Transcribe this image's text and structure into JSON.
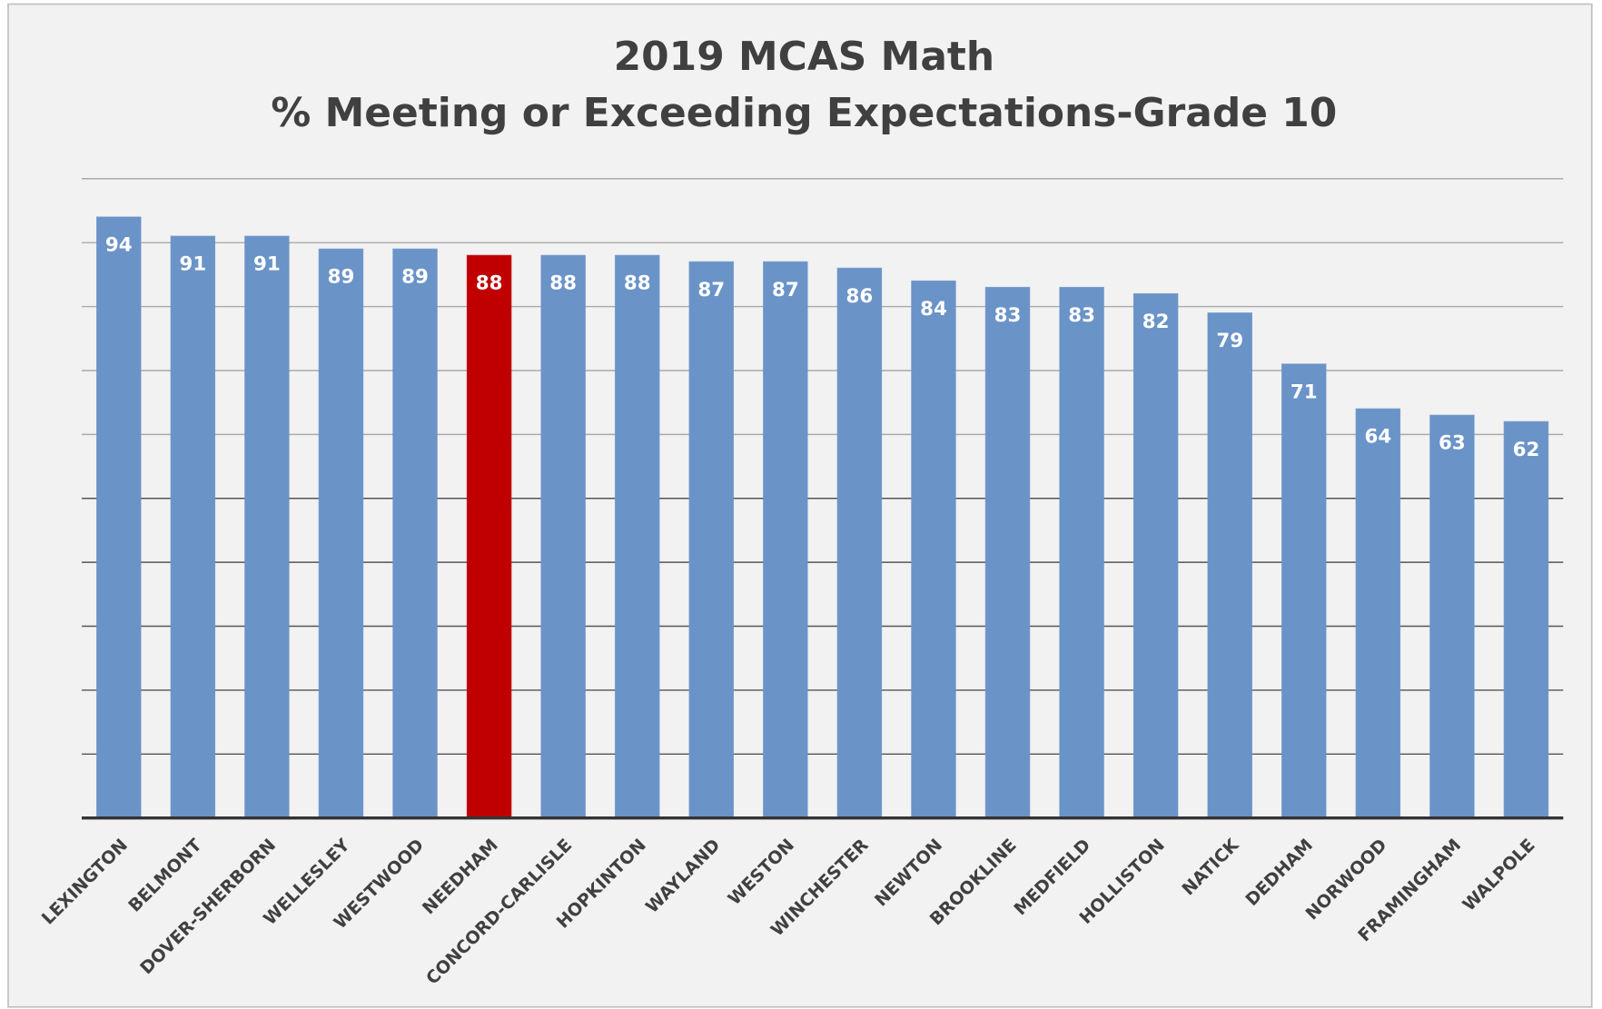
{
  "chart_data": {
    "type": "bar",
    "title": "2019 MCAS Math",
    "subtitle": "% Meeting or Exceeding Expectations-Grade 10",
    "categories": [
      "LEXINGTON",
      "BELMONT",
      "DOVER-SHERBORN",
      "WELLESLEY",
      "WESTWOOD",
      "NEEDHAM",
      "CONCORD-CARLISLE",
      "HOPKINTON",
      "WAYLAND",
      "WESTON",
      "WINCHESTER",
      "NEWTON",
      "BROOKLINE",
      "MEDFIELD",
      "HOLLISTON",
      "NATICK",
      "DEDHAM",
      "NORWOOD",
      "FRAMINGHAM",
      "WALPOLE"
    ],
    "values": [
      94,
      91,
      91,
      89,
      89,
      88,
      88,
      88,
      87,
      87,
      86,
      84,
      83,
      83,
      82,
      79,
      71,
      64,
      63,
      62
    ],
    "colors": [
      "#6a93c8",
      "#6a93c8",
      "#6a93c8",
      "#6a93c8",
      "#6a93c8",
      "#c00000",
      "#6a93c8",
      "#6a93c8",
      "#6a93c8",
      "#6a93c8",
      "#6a93c8",
      "#6a93c8",
      "#6a93c8",
      "#6a93c8",
      "#6a93c8",
      "#6a93c8",
      "#6a93c8",
      "#6a93c8",
      "#6a93c8",
      "#6a93c8"
    ],
    "ylim": [
      0,
      100
    ],
    "yticks": [
      0,
      10,
      20,
      30,
      40,
      50,
      60,
      70,
      80,
      90,
      100
    ],
    "grid": true
  }
}
